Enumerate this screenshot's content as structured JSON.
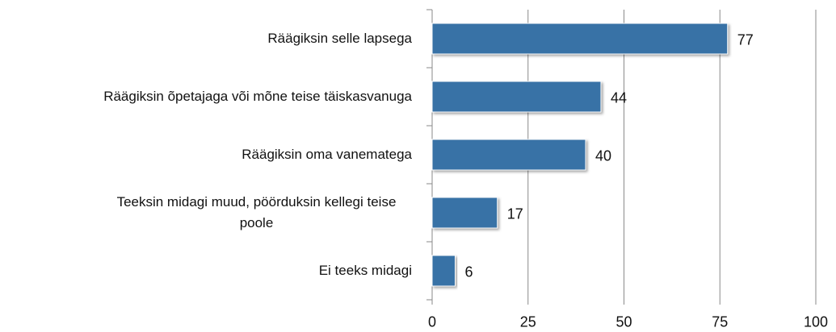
{
  "chart_data": {
    "type": "bar",
    "orientation": "horizontal",
    "categories": [
      "Räägiksin selle lapsega",
      "Räägiksin õpetajaga või mõne teise täiskasvanuga",
      "Räägiksin oma vanematega",
      "Teeksin midagi muud, pöörduksin kellegi teise poole",
      "Ei teeks midagi"
    ],
    "values": [
      77,
      44,
      40,
      17,
      6
    ],
    "color": "#3872a6",
    "xlim": [
      0,
      100
    ],
    "xticks": [
      0,
      25,
      50,
      75,
      100
    ],
    "grid": true
  }
}
